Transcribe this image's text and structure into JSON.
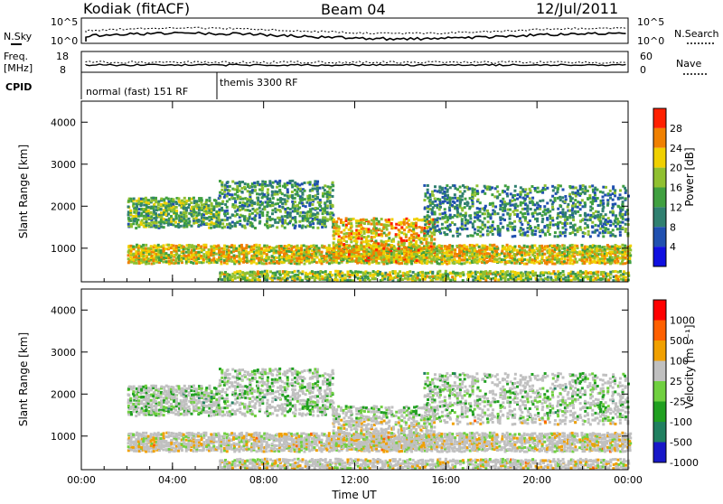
{
  "header": {
    "station": "Kodiak (fitACF)",
    "beam": "Beam 04",
    "date": "12/Jul/2011"
  },
  "noise_panel": {
    "left_label": "N.Sky",
    "right_label": "N.Search",
    "left_ticks": [
      "10^5",
      "10^0"
    ],
    "right_ticks": [
      "10^5",
      "10^0"
    ]
  },
  "freq_panel": {
    "left_label_1": "Freq.",
    "left_label_2": "[MHz]",
    "left_ticks": [
      "18",
      "8"
    ],
    "right_label": "Nave",
    "right_ticks": [
      "60",
      "0"
    ]
  },
  "cpid": {
    "label": "CPID",
    "segments": [
      {
        "start_hour": 0,
        "end_hour": 6,
        "text": "normal (fast) 151 RF"
      },
      {
        "start_hour": 6,
        "end_hour": 24,
        "text": "themis 3300 RF"
      }
    ]
  },
  "power_panel": {
    "ylabel": "Slant Range [km]",
    "cbar_label": "Power [dB]",
    "cbar_ticks": [
      "28",
      "24",
      "20",
      "16",
      "12",
      "8",
      "4"
    ]
  },
  "velocity_panel": {
    "ylabel": "Slant Range [km]",
    "cbar_label": "Velocity [m s⁻¹]",
    "cbar_ticks": [
      "1000",
      "500",
      "100",
      "25",
      "-25",
      "-100",
      "-500",
      "-1000"
    ]
  },
  "x_axis": {
    "label": "Time UT",
    "ticks": [
      "00:00",
      "04:00",
      "08:00",
      "12:00",
      "16:00",
      "20:00",
      "00:00"
    ]
  },
  "colors": {
    "power_scale": [
      "#1010e0",
      "#2050b0",
      "#308070",
      "#40a040",
      "#90c030",
      "#f0d000",
      "#f08000",
      "#ff2000"
    ],
    "velocity_scale": [
      "#1818c8",
      "#208060",
      "#20a020",
      "#70d040",
      "#c0c0c0",
      "#f0a000",
      "#ff6000",
      "#ff0000"
    ]
  },
  "chart_data": [
    {
      "type": "heatmap",
      "name": "Power",
      "x_range_hours": [
        0,
        24
      ],
      "ylim": [
        200,
        4500
      ],
      "yticks": [
        1000,
        2000,
        3000,
        4000
      ],
      "xlabel": "Time UT",
      "ylabel": "Slant Range [km]",
      "colorbar": {
        "label": "Power [dB]",
        "ticks": [
          4,
          8,
          12,
          16,
          20,
          24,
          28
        ]
      },
      "bands": [
        {
          "t0": 2.0,
          "t1": 24.0,
          "r0": 650,
          "r1": 1100,
          "level": 0.65,
          "density": 0.85
        },
        {
          "t0": 2.0,
          "t1": 6.0,
          "r0": 1500,
          "r1": 2200,
          "level": 0.45,
          "density": 0.75
        },
        {
          "t0": 6.0,
          "t1": 11.0,
          "r0": 1500,
          "r1": 2600,
          "level": 0.4,
          "density": 0.5
        },
        {
          "t0": 11.0,
          "t1": 15.5,
          "r0": 700,
          "r1": 1700,
          "level": 0.7,
          "density": 0.55
        },
        {
          "t0": 15.0,
          "t1": 24.0,
          "r0": 1300,
          "r1": 2500,
          "level": 0.35,
          "density": 0.4
        },
        {
          "t0": 6.0,
          "t1": 24.0,
          "r0": 250,
          "r1": 450,
          "level": 0.55,
          "density": 0.8
        }
      ]
    },
    {
      "type": "heatmap",
      "name": "Velocity",
      "x_range_hours": [
        0,
        24
      ],
      "ylim": [
        200,
        4500
      ],
      "yticks": [
        1000,
        2000,
        3000,
        4000
      ],
      "xlabel": "Time UT",
      "ylabel": "Slant Range [km]",
      "colorbar": {
        "label": "Velocity [m s⁻¹]",
        "ticks": [
          1000,
          500,
          100,
          25,
          -25,
          -100,
          -500,
          -1000
        ]
      }
    }
  ]
}
